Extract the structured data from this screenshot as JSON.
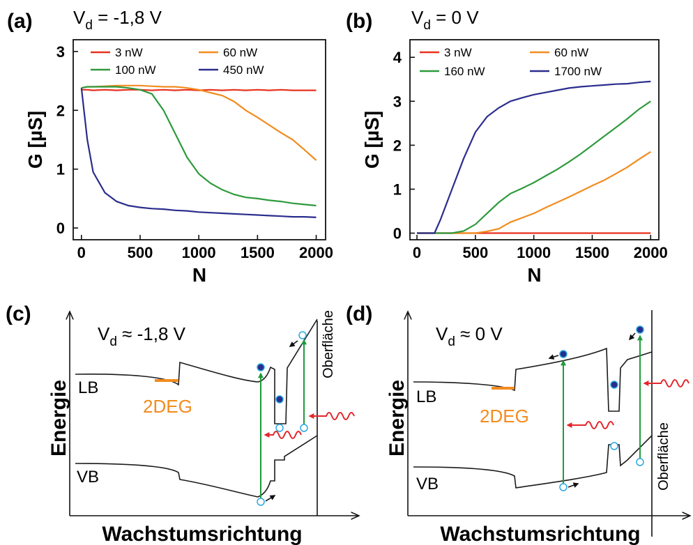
{
  "chart_data": [
    {
      "type": "line",
      "label": "(a)",
      "title": {
        "main": "V",
        "sub": "d",
        "rest": " = -1,8 V"
      },
      "xlabel": "N",
      "ylabel": "G [µS]",
      "xlim": [
        -70,
        2080
      ],
      "ylim": [
        -0.2,
        3.2
      ],
      "xticks": [
        0,
        500,
        1000,
        1500,
        2000
      ],
      "yticks": [
        0,
        1,
        2,
        3
      ],
      "x": [
        0,
        50,
        100,
        200,
        300,
        400,
        500,
        600,
        700,
        800,
        900,
        1000,
        1100,
        1200,
        1300,
        1400,
        1500,
        1600,
        1700,
        1800,
        1900,
        2000
      ],
      "series": [
        {
          "name": "3 nW",
          "color": "#e8321e",
          "values": [
            2.35,
            2.35,
            2.34,
            2.35,
            2.34,
            2.35,
            2.35,
            2.34,
            2.35,
            2.34,
            2.35,
            2.34,
            2.35,
            2.34,
            2.35,
            2.34,
            2.35,
            2.34,
            2.35,
            2.34,
            2.34,
            2.34
          ]
        },
        {
          "name": "60 nW",
          "color": "#f28c1e",
          "values": [
            2.38,
            2.4,
            2.4,
            2.41,
            2.42,
            2.42,
            2.42,
            2.41,
            2.4,
            2.4,
            2.38,
            2.35,
            2.3,
            2.25,
            2.15,
            2.0,
            1.88,
            1.75,
            1.62,
            1.5,
            1.33,
            1.15
          ]
        },
        {
          "name": "100 nW",
          "color": "#2e9a3c",
          "values": [
            2.38,
            2.4,
            2.4,
            2.4,
            2.4,
            2.38,
            2.35,
            2.28,
            2.0,
            1.6,
            1.2,
            0.92,
            0.76,
            0.65,
            0.57,
            0.52,
            0.5,
            0.47,
            0.45,
            0.42,
            0.4,
            0.38
          ]
        },
        {
          "name": "450 nW",
          "color": "#2a2d8c",
          "values": [
            2.38,
            1.5,
            0.95,
            0.6,
            0.45,
            0.38,
            0.35,
            0.33,
            0.32,
            0.3,
            0.29,
            0.27,
            0.26,
            0.25,
            0.24,
            0.23,
            0.22,
            0.21,
            0.2,
            0.19,
            0.19,
            0.18
          ]
        }
      ]
    },
    {
      "type": "line",
      "label": "(b)",
      "title": {
        "main": "V",
        "sub": "d",
        "rest": " = 0 V"
      },
      "xlabel": "N",
      "ylabel": "G [µS]",
      "xlim": [
        -60,
        2070
      ],
      "ylim": [
        -0.15,
        4.4
      ],
      "xticks": [
        0,
        500,
        1000,
        1500,
        2000
      ],
      "yticks": [
        0,
        1,
        2,
        3,
        4
      ],
      "x": [
        0,
        100,
        150,
        200,
        300,
        400,
        500,
        600,
        700,
        800,
        900,
        1000,
        1100,
        1200,
        1300,
        1400,
        1500,
        1600,
        1700,
        1800,
        1900,
        2000
      ],
      "series": [
        {
          "name": "3 nW",
          "color": "#e8321e",
          "values": [
            0,
            0,
            0,
            0,
            0,
            0,
            0,
            0,
            0,
            0,
            0,
            0,
            0,
            0,
            0,
            0,
            0,
            0,
            0,
            0,
            0,
            0
          ]
        },
        {
          "name": "60 nW",
          "color": "#f28c1e",
          "values": [
            0,
            0,
            0,
            0,
            0,
            0,
            0,
            0.04,
            0.1,
            0.25,
            0.35,
            0.45,
            0.58,
            0.7,
            0.82,
            0.95,
            1.08,
            1.2,
            1.35,
            1.5,
            1.68,
            1.85
          ]
        },
        {
          "name": "160 nW",
          "color": "#2e9a3c",
          "values": [
            0,
            0,
            0,
            0,
            0,
            0.05,
            0.2,
            0.45,
            0.7,
            0.9,
            1.02,
            1.15,
            1.3,
            1.45,
            1.62,
            1.8,
            2.0,
            2.2,
            2.4,
            2.6,
            2.82,
            3.0
          ]
        },
        {
          "name": "1700 nW",
          "color": "#2a2d8c",
          "values": [
            0,
            0,
            0,
            0.3,
            1.0,
            1.7,
            2.3,
            2.65,
            2.85,
            3.0,
            3.08,
            3.15,
            3.2,
            3.25,
            3.3,
            3.33,
            3.35,
            3.37,
            3.39,
            3.4,
            3.43,
            3.45
          ]
        }
      ]
    }
  ],
  "diagrams": [
    {
      "label": "(c)",
      "title": {
        "main": "V",
        "sub": "d",
        "rest": " ≈ -1,8 V"
      },
      "cb": "LB",
      "vb": "VB",
      "twodeg": "2DEG",
      "yaxis": "Energie",
      "xaxis": "Wachstumsrichtung",
      "surface": "Oberfläche"
    },
    {
      "label": "(d)",
      "title": {
        "main": "V",
        "sub": "d",
        "rest": " ≈ 0 V"
      },
      "cb": "LB",
      "vb": "VB",
      "twodeg": "2DEG",
      "yaxis": "Energie",
      "xaxis": "Wachstumsrichtung",
      "surface": "Oberfläche"
    }
  ]
}
